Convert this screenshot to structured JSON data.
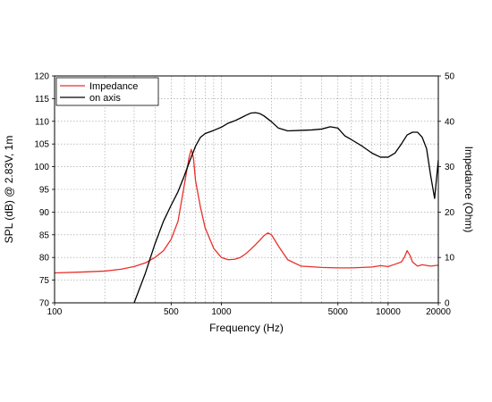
{
  "chart_data": {
    "type": "line",
    "title": "",
    "xlabel": "Frequency (Hz)",
    "ylabel_left": "SPL (dB) @ 2.83V, 1m",
    "ylabel_right": "Impedance (Ohm)",
    "x_scale": "log",
    "xlim": [
      100,
      20000
    ],
    "ylim_left": [
      70,
      120
    ],
    "ylim_right": [
      0,
      50
    ],
    "x_ticks": [
      "100",
      "500",
      "1000",
      "5000",
      "10000",
      "20000"
    ],
    "y_ticks_left": [
      "70",
      "75",
      "80",
      "85",
      "90",
      "95",
      "100",
      "105",
      "110",
      "115",
      "120"
    ],
    "y_ticks_right": [
      "0",
      "10",
      "20",
      "30",
      "40",
      "50"
    ],
    "grid": true,
    "legend_position": "top-left",
    "series": [
      {
        "name": "Impedance",
        "axis": "right",
        "color": "#e8302a",
        "x": [
          100,
          150,
          200,
          250,
          300,
          350,
          400,
          450,
          500,
          550,
          600,
          640,
          660,
          680,
          700,
          750,
          800,
          900,
          1000,
          1100,
          1200,
          1300,
          1400,
          1500,
          1600,
          1700,
          1800,
          1900,
          2000,
          2200,
          2500,
          3000,
          4000,
          5000,
          6000,
          7000,
          8000,
          9000,
          10000,
          11000,
          12000,
          12500,
          13000,
          13500,
          14000,
          15000,
          16000,
          18000,
          20000
        ],
        "y": [
          6.6,
          6.8,
          7.0,
          7.4,
          8.0,
          8.8,
          10.0,
          11.5,
          14.0,
          18.0,
          26.0,
          32.0,
          33.8,
          32.0,
          27.0,
          21.0,
          16.5,
          12.0,
          10.0,
          9.5,
          9.6,
          10.0,
          10.8,
          11.8,
          12.8,
          13.8,
          14.8,
          15.4,
          15.0,
          12.5,
          9.5,
          8.1,
          7.8,
          7.7,
          7.7,
          7.8,
          7.9,
          8.2,
          8.0,
          8.5,
          9.0,
          10.0,
          11.5,
          10.5,
          9.0,
          8.1,
          8.4,
          8.1,
          8.3
        ]
      },
      {
        "name": "on axis",
        "axis": "left",
        "color": "#000000",
        "x": [
          300,
          350,
          400,
          450,
          500,
          550,
          600,
          650,
          700,
          750,
          800,
          900,
          1000,
          1100,
          1200,
          1300,
          1400,
          1500,
          1600,
          1700,
          1800,
          2000,
          2200,
          2500,
          3000,
          3500,
          4000,
          4500,
          5000,
          5500,
          6000,
          7000,
          8000,
          9000,
          10000,
          11000,
          12000,
          13000,
          14000,
          15000,
          16000,
          17000,
          18000,
          19000,
          20000
        ],
        "y": [
          70,
          76.5,
          83.0,
          88.0,
          91.5,
          94.5,
          98.0,
          101.5,
          104.5,
          106.5,
          107.3,
          108.0,
          108.7,
          109.6,
          110.1,
          110.7,
          111.3,
          111.8,
          111.9,
          111.7,
          111.2,
          109.9,
          108.5,
          107.9,
          108.0,
          108.1,
          108.3,
          108.8,
          108.5,
          106.8,
          106.0,
          104.5,
          103.0,
          102.1,
          102.1,
          103.0,
          105.0,
          107.0,
          107.6,
          107.6,
          106.5,
          104.0,
          98.0,
          93.0,
          101.5
        ]
      }
    ]
  }
}
